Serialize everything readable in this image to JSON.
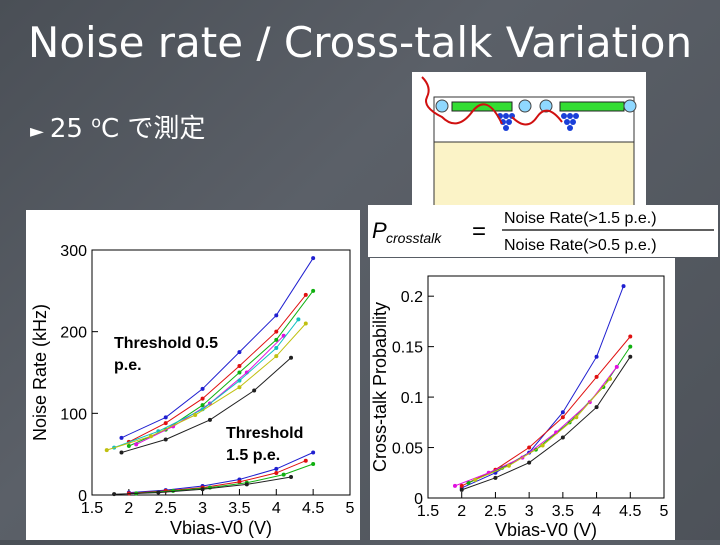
{
  "slide": {
    "title": "Noise rate / Cross-talk Variation",
    "bullet_text": "25 ",
    "bullet_unit_sup": "o",
    "bullet_unit": "C で測定"
  },
  "formula": {
    "lhs": "P",
    "lhs_sub": "crosstalk",
    "numerator": "Noise Rate(>1.5 p.e.)",
    "denominator": "Noise Rate(>0.5 p.e.)"
  },
  "chart_data": [
    {
      "type": "line",
      "xlabel": "Vbias-V0 (V)",
      "ylabel": "Noise Rate (kHz)",
      "xlim": [
        1.5,
        5
      ],
      "ylim": [
        0,
        300
      ],
      "xticks": [
        "1.5",
        "2",
        "2.5",
        "3",
        "3.5",
        "4",
        "4.5",
        "5"
      ],
      "yticks": [
        "0",
        "100",
        "200",
        "300"
      ],
      "annotations": [
        "Threshold 0.5 p.e.",
        "Threshold 1.5 p.e."
      ],
      "series": [
        {
          "group": "0.5 p.e.",
          "color": "#1f1fd0",
          "x": [
            1.9,
            2.5,
            3,
            3.5,
            4,
            4.5
          ],
          "y": [
            70,
            95,
            130,
            175,
            220,
            290
          ]
        },
        {
          "group": "0.5 p.e.",
          "color": "#e01010",
          "x": [
            2,
            2.5,
            3,
            3.5,
            4,
            4.4
          ],
          "y": [
            65,
            88,
            118,
            158,
            200,
            245
          ]
        },
        {
          "group": "0.5 p.e.",
          "color": "#10b010",
          "x": [
            2,
            2.5,
            3,
            3.5,
            4,
            4.5
          ],
          "y": [
            60,
            80,
            110,
            150,
            190,
            250
          ]
        },
        {
          "group": "0.5 p.e.",
          "color": "#e010e0",
          "x": [
            2.1,
            2.6,
            3.1,
            3.6,
            4.1
          ],
          "y": [
            62,
            84,
            112,
            150,
            195
          ]
        },
        {
          "group": "0.5 p.e.",
          "color": "#10c0c0",
          "x": [
            1.8,
            2.4,
            3,
            3.5,
            4,
            4.3
          ],
          "y": [
            58,
            78,
            105,
            140,
            180,
            215
          ]
        },
        {
          "group": "0.5 p.e.",
          "color": "#c0c010",
          "x": [
            1.7,
            2.3,
            2.9,
            3.5,
            4,
            4.4
          ],
          "y": [
            55,
            72,
            98,
            132,
            170,
            210
          ]
        },
        {
          "group": "0.5 p.e.",
          "color": "#202020",
          "x": [
            1.9,
            2.5,
            3.1,
            3.7,
            4.2
          ],
          "y": [
            52,
            68,
            92,
            128,
            168
          ]
        },
        {
          "group": "1.5 p.e.",
          "color": "#1f1fd0",
          "x": [
            2,
            2.5,
            3,
            3.5,
            4,
            4.5
          ],
          "y": [
            3,
            6,
            11,
            19,
            32,
            52
          ]
        },
        {
          "group": "1.5 p.e.",
          "color": "#e01010",
          "x": [
            2,
            2.5,
            3,
            3.5,
            4,
            4.4
          ],
          "y": [
            2,
            5,
            9,
            16,
            27,
            42
          ]
        },
        {
          "group": "1.5 p.e.",
          "color": "#10b010",
          "x": [
            2.1,
            2.6,
            3.1,
            3.6,
            4.1,
            4.5
          ],
          "y": [
            2,
            5,
            9,
            15,
            25,
            38
          ]
        },
        {
          "group": "1.5 p.e.",
          "color": "#202020",
          "x": [
            1.8,
            2.4,
            3,
            3.6,
            4.2
          ],
          "y": [
            1,
            3,
            7,
            13,
            22
          ]
        }
      ]
    },
    {
      "type": "line",
      "xlabel": "Vbias-V0 (V)",
      "ylabel": "Cross-talk Probability",
      "xlim": [
        1.5,
        5
      ],
      "ylim": [
        0,
        0.22
      ],
      "xticks": [
        "1.5",
        "2",
        "2.5",
        "3",
        "3.5",
        "4",
        "4.5",
        "5"
      ],
      "yticks": [
        "0",
        "0.05",
        "0.1",
        "0.15",
        "0.2"
      ],
      "series": [
        {
          "color": "#1f1fd0",
          "x": [
            2,
            2.5,
            3,
            3.5,
            4,
            4.4
          ],
          "y": [
            0.01,
            0.025,
            0.045,
            0.085,
            0.14,
            0.21
          ]
        },
        {
          "color": "#e01010",
          "x": [
            2,
            2.5,
            3,
            3.5,
            4,
            4.5
          ],
          "y": [
            0.012,
            0.028,
            0.05,
            0.08,
            0.12,
            0.16
          ]
        },
        {
          "color": "#10b010",
          "x": [
            2.1,
            2.6,
            3.1,
            3.6,
            4.1,
            4.5
          ],
          "y": [
            0.015,
            0.03,
            0.048,
            0.075,
            0.11,
            0.15
          ]
        },
        {
          "color": "#e010e0",
          "x": [
            1.9,
            2.4,
            2.9,
            3.4,
            3.9,
            4.3
          ],
          "y": [
            0.012,
            0.025,
            0.04,
            0.065,
            0.095,
            0.13
          ]
        },
        {
          "color": "#202020",
          "x": [
            2,
            2.5,
            3,
            3.5,
            4,
            4.5
          ],
          "y": [
            0.008,
            0.02,
            0.035,
            0.06,
            0.09,
            0.14
          ]
        },
        {
          "color": "#c0c010",
          "x": [
            2.2,
            2.7,
            3.2,
            3.7,
            4.2
          ],
          "y": [
            0.018,
            0.032,
            0.052,
            0.08,
            0.118
          ]
        }
      ]
    }
  ]
}
